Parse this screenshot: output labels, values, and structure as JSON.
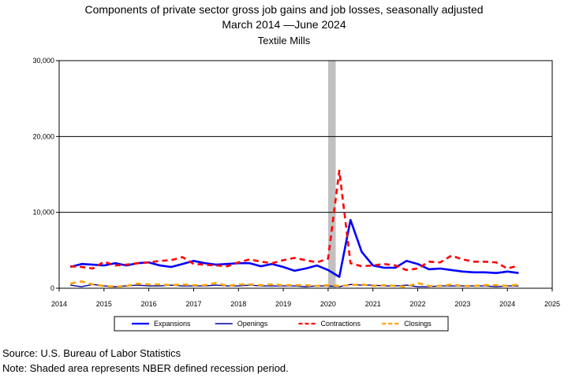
{
  "chart_data": {
    "type": "line",
    "title_lines": [
      "Components of private sector gross job gains and job losses, seasonally adjusted",
      "March 2014 —June 2024",
      "Textile Mills"
    ],
    "xlabel": "",
    "ylabel": "",
    "xlim": [
      2014,
      2025
    ],
    "ylim": [
      0,
      30000
    ],
    "x_ticks": [
      "2014",
      "2015",
      "2016",
      "2017",
      "2018",
      "2019",
      "2020",
      "2021",
      "2022",
      "2023",
      "2024",
      "2025"
    ],
    "y_ticks": [
      "0",
      "10,000",
      "20,000",
      "30,000"
    ],
    "grid": "horizontal",
    "legend_position": "bottom",
    "recession": {
      "start": 2020.0,
      "end": 2020.17
    },
    "x": [
      2014.25,
      2014.5,
      2014.75,
      2015.0,
      2015.25,
      2015.5,
      2015.75,
      2016.0,
      2016.25,
      2016.5,
      2016.75,
      2017.0,
      2017.25,
      2017.5,
      2017.75,
      2018.0,
      2018.25,
      2018.5,
      2018.75,
      2019.0,
      2019.25,
      2019.5,
      2019.75,
      2020.0,
      2020.25,
      2020.5,
      2020.75,
      2021.0,
      2021.25,
      2021.5,
      2021.75,
      2022.0,
      2022.25,
      2022.5,
      2022.75,
      2023.0,
      2023.25,
      2023.5,
      2023.75,
      2024.0,
      2024.25
    ],
    "series": [
      {
        "name": "Expansions",
        "color": "#0000ff",
        "style": "solid",
        "width": 2.6,
        "values": [
          2800,
          3200,
          3100,
          3000,
          3300,
          3000,
          3300,
          3400,
          3000,
          2800,
          3200,
          3600,
          3300,
          3100,
          3200,
          3300,
          3300,
          2900,
          3200,
          2800,
          2300,
          2600,
          3000,
          2400,
          1500,
          9000,
          4800,
          3000,
          2700,
          2700,
          3600,
          3200,
          2500,
          2600,
          2400,
          2200,
          2100,
          2100,
          2000,
          2200,
          2000
        ]
      },
      {
        "name": "Openings",
        "color": "#0000a0",
        "style": "solid",
        "width": 1.4,
        "values": [
          400,
          200,
          500,
          300,
          200,
          300,
          400,
          300,
          300,
          400,
          300,
          300,
          300,
          400,
          300,
          300,
          400,
          300,
          300,
          300,
          300,
          200,
          300,
          300,
          200,
          500,
          400,
          400,
          300,
          300,
          400,
          200,
          200,
          300,
          300,
          300,
          300,
          300,
          200,
          300,
          300
        ]
      },
      {
        "name": "Contractions",
        "color": "#ff0000",
        "style": "dash",
        "width": 2.6,
        "values": [
          2900,
          2800,
          2600,
          3500,
          3000,
          3100,
          3300,
          3400,
          3600,
          3700,
          4100,
          3200,
          3100,
          3000,
          2900,
          3400,
          3800,
          3500,
          3300,
          3700,
          4000,
          3700,
          3400,
          3900,
          15500,
          3300,
          2900,
          3000,
          3200,
          3000,
          2400,
          2600,
          3500,
          3400,
          4300,
          3800,
          3500,
          3500,
          3400,
          2600,
          3000
        ]
      },
      {
        "name": "Closings",
        "color": "#ffa500",
        "style": "dash",
        "width": 2.6,
        "values": [
          600,
          900,
          500,
          300,
          200,
          300,
          600,
          500,
          500,
          400,
          500,
          400,
          400,
          700,
          300,
          500,
          500,
          400,
          500,
          400,
          400,
          400,
          300,
          400,
          300,
          400,
          500,
          300,
          400,
          300,
          200,
          700,
          300,
          300,
          500,
          300,
          300,
          400,
          400,
          300,
          500
        ]
      }
    ]
  },
  "footer": {
    "source": "Source: U.S. Bureau of Labor Statistics",
    "note": "Note: Shaded area represents NBER defined recession period."
  }
}
